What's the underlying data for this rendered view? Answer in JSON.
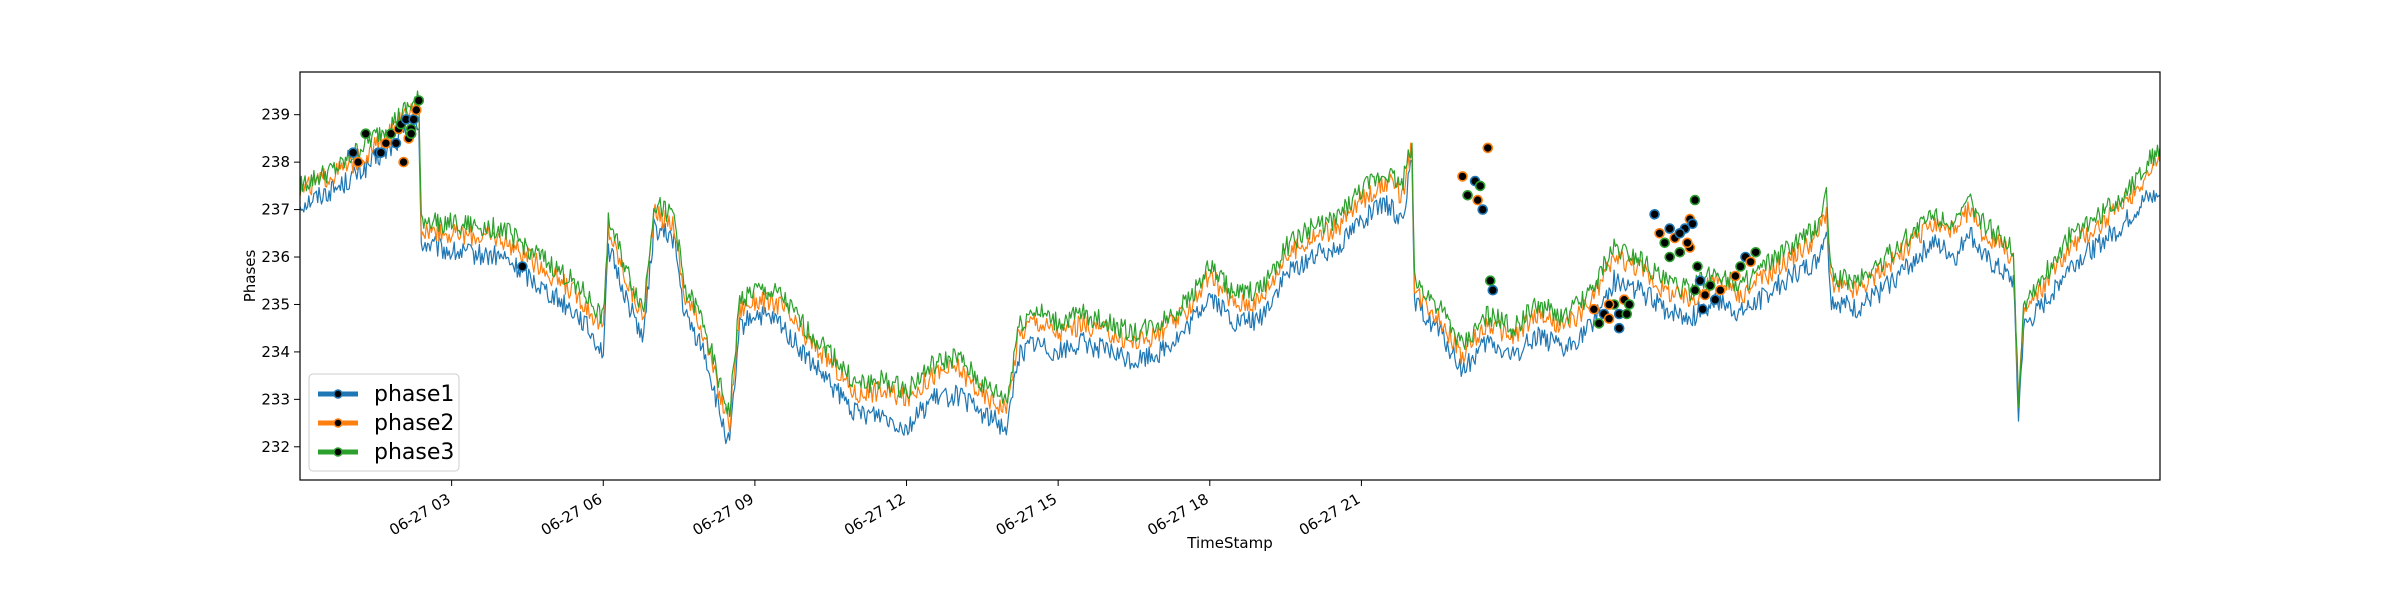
{
  "chart_data": {
    "type": "line",
    "title": "",
    "xlabel": "TimeStamp",
    "ylabel": "Phases",
    "ylim": [
      231.3,
      239.9
    ],
    "x_range": [
      "06-27 00:00",
      "06-27 23:59"
    ],
    "x_tick_labels": [
      "06-27 03",
      "06-27 06",
      "06-27 09",
      "06-27 12",
      "06-27 15",
      "06-27 18",
      "06-27 21"
    ],
    "y_ticks": [
      232,
      233,
      234,
      235,
      236,
      237,
      238,
      239
    ],
    "grid": false,
    "legend_position": "lower-left",
    "marker_style": "black dots with series-colored edge on anomaly points",
    "x_unit": "hours since 06-27 00:00",
    "series": [
      {
        "name": "phase1",
        "color": "#1f77b4",
        "points": [
          [
            0,
            237.1
          ],
          [
            0.8,
            237.5
          ],
          [
            1.2,
            237.8
          ],
          [
            1.8,
            238.3
          ],
          [
            2.2,
            238.7
          ],
          [
            2.35,
            238.7
          ],
          [
            2.4,
            236.3
          ],
          [
            3,
            236.1
          ],
          [
            4,
            236.0
          ],
          [
            4.5,
            235.6
          ],
          [
            5.5,
            234.8
          ],
          [
            6.0,
            234.0
          ],
          [
            6.1,
            236.2
          ],
          [
            6.5,
            235.0
          ],
          [
            6.8,
            234.3
          ],
          [
            7.0,
            236.6
          ],
          [
            7.4,
            236.4
          ],
          [
            7.6,
            234.8
          ],
          [
            8.0,
            234.0
          ],
          [
            8.3,
            232.7
          ],
          [
            8.5,
            232.0
          ],
          [
            8.7,
            234.5
          ],
          [
            9.0,
            234.8
          ],
          [
            9.5,
            234.6
          ],
          [
            10.0,
            233.9
          ],
          [
            10.5,
            233.3
          ],
          [
            11.0,
            232.7
          ],
          [
            11.5,
            232.7
          ],
          [
            12.0,
            232.4
          ],
          [
            12.5,
            233.0
          ],
          [
            13.0,
            233.1
          ],
          [
            13.5,
            232.7
          ],
          [
            14.0,
            232.4
          ],
          [
            14.2,
            233.9
          ],
          [
            14.5,
            234.2
          ],
          [
            15.0,
            234.0
          ],
          [
            15.5,
            234.2
          ],
          [
            16.0,
            234.0
          ],
          [
            16.5,
            233.8
          ],
          [
            17.0,
            234.0
          ],
          [
            17.5,
            234.4
          ],
          [
            18.0,
            235.2
          ],
          [
            18.5,
            234.6
          ],
          [
            19.0,
            234.7
          ],
          [
            19.5,
            235.6
          ],
          [
            20.0,
            236.0
          ],
          [
            20.5,
            236.2
          ],
          [
            21.0,
            236.8
          ],
          [
            21.5,
            237.1
          ],
          [
            21.8,
            236.8
          ],
          [
            22.0,
            238.0
          ],
          [
            22.05,
            235.0
          ],
          [
            22.5,
            234.5
          ],
          [
            23.0,
            233.6
          ],
          [
            23.5,
            234.2
          ],
          [
            24.0,
            233.9
          ],
          [
            24.5,
            234.4
          ],
          [
            25.0,
            234.0
          ],
          [
            25.5,
            234.5
          ],
          [
            26.0,
            235.5
          ],
          [
            26.5,
            235.3
          ],
          [
            27.0,
            234.9
          ],
          [
            27.5,
            234.7
          ],
          [
            28.0,
            235.1
          ],
          [
            28.5,
            234.8
          ],
          [
            29.0,
            235.2
          ],
          [
            29.5,
            235.6
          ],
          [
            30.0,
            235.9
          ],
          [
            30.2,
            236.6
          ],
          [
            30.3,
            235.1
          ],
          [
            30.8,
            234.9
          ],
          [
            31.3,
            235.3
          ],
          [
            31.8,
            235.8
          ],
          [
            32.3,
            236.3
          ],
          [
            32.8,
            236.0
          ],
          [
            33.0,
            236.6
          ],
          [
            33.3,
            236.0
          ],
          [
            33.9,
            235.5
          ],
          [
            34.0,
            232.6
          ],
          [
            34.1,
            234.5
          ],
          [
            34.5,
            235.0
          ],
          [
            35.0,
            235.8
          ],
          [
            35.5,
            236.2
          ],
          [
            36.0,
            236.6
          ],
          [
            36.5,
            237.2
          ],
          [
            36.8,
            237.3
          ]
        ]
      },
      {
        "name": "phase2",
        "color": "#ff7f0e",
        "points": [
          [
            0,
            237.4
          ],
          [
            0.8,
            237.8
          ],
          [
            1.2,
            238.1
          ],
          [
            1.8,
            238.6
          ],
          [
            2.2,
            239.1
          ],
          [
            2.35,
            239.2
          ],
          [
            2.4,
            236.6
          ],
          [
            3,
            236.5
          ],
          [
            4,
            236.4
          ],
          [
            4.5,
            236.0
          ],
          [
            5.5,
            235.2
          ],
          [
            6.0,
            234.5
          ],
          [
            6.1,
            236.6
          ],
          [
            6.5,
            235.4
          ],
          [
            6.8,
            234.7
          ],
          [
            7.0,
            236.9
          ],
          [
            7.4,
            236.7
          ],
          [
            7.6,
            235.2
          ],
          [
            8.0,
            234.4
          ],
          [
            8.3,
            233.1
          ],
          [
            8.5,
            232.5
          ],
          [
            8.7,
            234.9
          ],
          [
            9.0,
            235.1
          ],
          [
            9.5,
            235.0
          ],
          [
            10.0,
            234.3
          ],
          [
            10.5,
            233.8
          ],
          [
            11.0,
            233.1
          ],
          [
            11.5,
            233.2
          ],
          [
            12.0,
            233.0
          ],
          [
            12.5,
            233.5
          ],
          [
            13.0,
            233.7
          ],
          [
            13.5,
            233.1
          ],
          [
            14.0,
            232.8
          ],
          [
            14.2,
            234.3
          ],
          [
            14.5,
            234.7
          ],
          [
            15.0,
            234.4
          ],
          [
            15.5,
            234.6
          ],
          [
            16.0,
            234.4
          ],
          [
            16.5,
            234.2
          ],
          [
            17.0,
            234.4
          ],
          [
            17.5,
            234.8
          ],
          [
            18.0,
            235.6
          ],
          [
            18.5,
            235.0
          ],
          [
            19.0,
            235.1
          ],
          [
            19.5,
            236.0
          ],
          [
            20.0,
            236.4
          ],
          [
            20.5,
            236.6
          ],
          [
            21.0,
            237.2
          ],
          [
            21.5,
            237.6
          ],
          [
            21.8,
            237.3
          ],
          [
            22.0,
            238.3
          ],
          [
            22.05,
            235.3
          ],
          [
            22.5,
            234.8
          ],
          [
            23.0,
            233.9
          ],
          [
            23.5,
            234.6
          ],
          [
            24.0,
            234.3
          ],
          [
            24.5,
            234.8
          ],
          [
            25.0,
            234.5
          ],
          [
            25.5,
            235.0
          ],
          [
            26.0,
            236.0
          ],
          [
            26.5,
            235.8
          ],
          [
            27.0,
            235.3
          ],
          [
            27.5,
            235.1
          ],
          [
            28.0,
            235.5
          ],
          [
            28.5,
            235.2
          ],
          [
            29.0,
            235.6
          ],
          [
            29.5,
            236.0
          ],
          [
            30.0,
            236.4
          ],
          [
            30.2,
            237.0
          ],
          [
            30.3,
            235.4
          ],
          [
            30.8,
            235.3
          ],
          [
            31.3,
            235.7
          ],
          [
            31.8,
            236.2
          ],
          [
            32.3,
            236.7
          ],
          [
            32.8,
            236.5
          ],
          [
            33.0,
            237.0
          ],
          [
            33.3,
            236.5
          ],
          [
            33.9,
            236.0
          ],
          [
            34.0,
            232.8
          ],
          [
            34.1,
            234.8
          ],
          [
            34.5,
            235.4
          ],
          [
            35.0,
            236.2
          ],
          [
            35.5,
            236.6
          ],
          [
            36.0,
            237.0
          ],
          [
            36.5,
            237.7
          ],
          [
            36.8,
            238.0
          ]
        ]
      },
      {
        "name": "phase3",
        "color": "#2ca02c",
        "points": [
          [
            0,
            237.5
          ],
          [
            0.8,
            237.9
          ],
          [
            1.2,
            238.3
          ],
          [
            1.8,
            238.8
          ],
          [
            2.2,
            239.2
          ],
          [
            2.35,
            239.3
          ],
          [
            2.4,
            236.8
          ],
          [
            3,
            236.7
          ],
          [
            4,
            236.6
          ],
          [
            4.5,
            236.2
          ],
          [
            5.5,
            235.4
          ],
          [
            6.0,
            234.7
          ],
          [
            6.1,
            236.8
          ],
          [
            6.5,
            235.6
          ],
          [
            6.8,
            234.9
          ],
          [
            7.0,
            237.1
          ],
          [
            7.4,
            236.9
          ],
          [
            7.6,
            235.4
          ],
          [
            8.0,
            234.6
          ],
          [
            8.3,
            233.3
          ],
          [
            8.5,
            232.7
          ],
          [
            8.7,
            235.1
          ],
          [
            9.0,
            235.3
          ],
          [
            9.5,
            235.2
          ],
          [
            10.0,
            234.5
          ],
          [
            10.5,
            234.0
          ],
          [
            11.0,
            233.3
          ],
          [
            11.5,
            233.4
          ],
          [
            12.0,
            233.2
          ],
          [
            12.5,
            233.7
          ],
          [
            13.0,
            233.9
          ],
          [
            13.5,
            233.3
          ],
          [
            14.0,
            233.0
          ],
          [
            14.2,
            234.5
          ],
          [
            14.5,
            234.9
          ],
          [
            15.0,
            234.6
          ],
          [
            15.5,
            234.8
          ],
          [
            16.0,
            234.6
          ],
          [
            16.5,
            234.4
          ],
          [
            17.0,
            234.6
          ],
          [
            17.5,
            235.0
          ],
          [
            18.0,
            235.8
          ],
          [
            18.5,
            235.2
          ],
          [
            19.0,
            235.3
          ],
          [
            19.5,
            236.2
          ],
          [
            20.0,
            236.6
          ],
          [
            20.5,
            236.8
          ],
          [
            21.0,
            237.4
          ],
          [
            21.5,
            237.8
          ],
          [
            21.8,
            237.5
          ],
          [
            22.0,
            238.4
          ],
          [
            22.05,
            235.5
          ],
          [
            22.5,
            235.0
          ],
          [
            23.0,
            234.1
          ],
          [
            23.5,
            234.8
          ],
          [
            24.0,
            234.5
          ],
          [
            24.5,
            235.0
          ],
          [
            25.0,
            234.7
          ],
          [
            25.5,
            235.2
          ],
          [
            26.0,
            236.2
          ],
          [
            26.5,
            236.0
          ],
          [
            27.0,
            235.5
          ],
          [
            27.5,
            235.3
          ],
          [
            28.0,
            235.7
          ],
          [
            28.5,
            235.4
          ],
          [
            29.0,
            235.8
          ],
          [
            29.5,
            236.2
          ],
          [
            30.0,
            236.6
          ],
          [
            30.2,
            237.3
          ],
          [
            30.3,
            235.6
          ],
          [
            30.8,
            235.5
          ],
          [
            31.3,
            235.9
          ],
          [
            31.8,
            236.4
          ],
          [
            32.3,
            236.9
          ],
          [
            32.8,
            236.7
          ],
          [
            33.0,
            237.2
          ],
          [
            33.3,
            236.7
          ],
          [
            33.9,
            236.2
          ],
          [
            34.0,
            232.9
          ],
          [
            34.1,
            235.0
          ],
          [
            34.5,
            235.6
          ],
          [
            35.0,
            236.4
          ],
          [
            35.5,
            236.8
          ],
          [
            36.0,
            237.2
          ],
          [
            36.5,
            237.9
          ],
          [
            36.8,
            238.3
          ]
        ]
      }
    ],
    "anomaly_markers": [
      [
        1.05,
        238.2
      ],
      [
        1.15,
        238.0
      ],
      [
        1.3,
        238.6
      ],
      [
        1.55,
        238.2
      ],
      [
        1.7,
        238.4
      ],
      [
        1.8,
        238.6
      ],
      [
        1.9,
        238.4
      ],
      [
        1.95,
        238.7
      ],
      [
        2.0,
        238.8
      ],
      [
        2.1,
        238.9
      ],
      [
        2.15,
        238.5
      ],
      [
        2.2,
        238.7
      ],
      [
        2.25,
        238.9
      ],
      [
        2.3,
        239.1
      ],
      [
        2.35,
        239.3
      ],
      [
        1.6,
        238.2
      ],
      [
        2.05,
        238.0
      ],
      [
        2.2,
        238.6
      ],
      [
        4.4,
        235.8
      ],
      [
        23.0,
        237.7
      ],
      [
        23.1,
        237.3
      ],
      [
        23.25,
        237.6
      ],
      [
        23.3,
        237.2
      ],
      [
        23.35,
        237.5
      ],
      [
        23.4,
        237.0
      ],
      [
        23.5,
        238.3
      ],
      [
        23.55,
        235.5
      ],
      [
        23.6,
        235.3
      ],
      [
        25.6,
        234.9
      ],
      [
        25.7,
        234.6
      ],
      [
        25.8,
        234.8
      ],
      [
        25.9,
        234.7
      ],
      [
        26.0,
        235.0
      ],
      [
        26.1,
        234.8
      ],
      [
        26.2,
        235.1
      ],
      [
        26.3,
        235.0
      ],
      [
        26.1,
        234.5
      ],
      [
        25.9,
        235.0
      ],
      [
        26.25,
        234.8
      ],
      [
        26.8,
        236.9
      ],
      [
        26.9,
        236.5
      ],
      [
        27.0,
        236.3
      ],
      [
        27.1,
        236.6
      ],
      [
        27.2,
        236.4
      ],
      [
        27.3,
        236.1
      ],
      [
        27.4,
        236.6
      ],
      [
        27.5,
        236.2
      ],
      [
        27.1,
        236.0
      ],
      [
        27.3,
        236.5
      ],
      [
        27.5,
        236.8
      ],
      [
        27.6,
        237.2
      ],
      [
        27.55,
        236.7
      ],
      [
        27.45,
        236.3
      ],
      [
        27.6,
        235.3
      ],
      [
        27.7,
        235.5
      ],
      [
        27.8,
        235.2
      ],
      [
        27.9,
        235.4
      ],
      [
        28.0,
        235.1
      ],
      [
        28.1,
        235.3
      ],
      [
        27.65,
        235.8
      ],
      [
        27.75,
        234.9
      ],
      [
        28.4,
        235.6
      ],
      [
        28.5,
        235.8
      ],
      [
        28.6,
        236.0
      ],
      [
        28.7,
        235.9
      ],
      [
        28.8,
        236.1
      ]
    ]
  },
  "legend": {
    "items": [
      {
        "label": "phase1",
        "color": "#1f77b4"
      },
      {
        "label": "phase2",
        "color": "#ff7f0e"
      },
      {
        "label": "phase3",
        "color": "#2ca02c"
      }
    ]
  }
}
